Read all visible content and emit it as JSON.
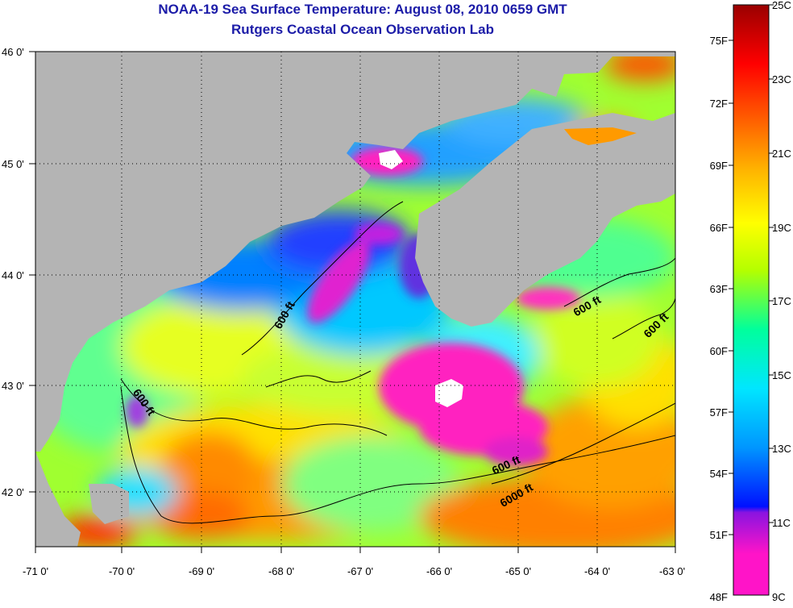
{
  "header": {
    "title_line1": "NOAA-19 Sea Surface Temperature:  August 08, 2010 0659 GMT",
    "title_line2": "Rutgers Coastal Ocean Observation Lab"
  },
  "map": {
    "lon_labels": [
      "-71 0'",
      "-70 0'",
      "-69 0'",
      "-68 0'",
      "-67 0'",
      "-66 0'",
      "-65 0'",
      "-64 0'",
      "-63 0'"
    ],
    "lat_labels": [
      "46 0'",
      "45 0'",
      "44 0'",
      "43 0'",
      "42 0'"
    ],
    "contour_labels": [
      "600 ft",
      "600 ft",
      "600 ft",
      "600 ft",
      "600 ft",
      "6000 ft"
    ],
    "colors": {
      "land": "#b4b4b4",
      "cloud": "#ffffff",
      "contour": "#000000"
    }
  },
  "colorbar": {
    "fahrenheit_labels": [
      "75F",
      "72F",
      "69F",
      "66F",
      "63F",
      "60F",
      "57F",
      "54F",
      "51F",
      "48F"
    ],
    "celsius_labels": [
      "25C",
      "23C",
      "21C",
      "19C",
      "17C",
      "15C",
      "13C",
      "11C",
      "9C"
    ],
    "stops": [
      "#ff14c8",
      "#8a14e0",
      "#0010ff",
      "#0096ff",
      "#00e6ff",
      "#00ff9c",
      "#b4ff00",
      "#ffff00",
      "#ffb400",
      "#ff6400",
      "#ff0000",
      "#9a0000"
    ]
  }
}
